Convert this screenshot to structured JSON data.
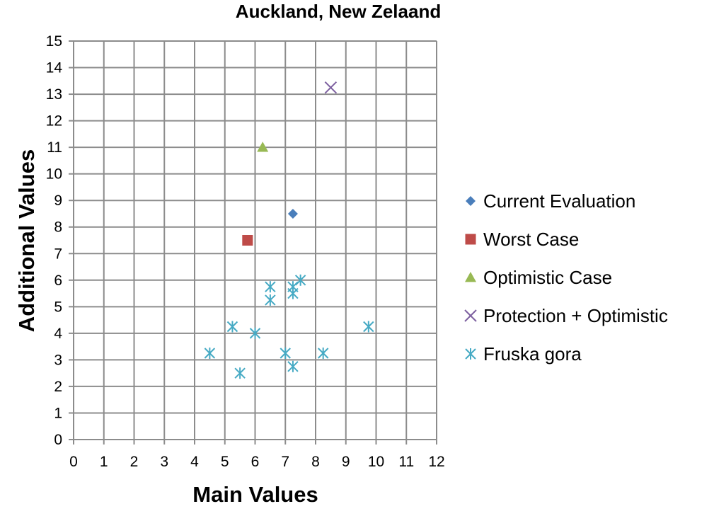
{
  "chart_data": {
    "type": "scatter",
    "title": "Auckland, New Zelaand",
    "xlabel": "Main Values",
    "ylabel": "Additional Values",
    "xlim": [
      0,
      12
    ],
    "ylim": [
      0,
      15
    ],
    "xticks": [
      0,
      1,
      2,
      3,
      4,
      5,
      6,
      7,
      8,
      9,
      10,
      11,
      12
    ],
    "yticks": [
      0,
      1,
      2,
      3,
      4,
      5,
      6,
      7,
      8,
      9,
      10,
      11,
      12,
      13,
      14,
      15
    ],
    "grid": true,
    "legend_position": "right",
    "series": [
      {
        "name": "Current Evaluation",
        "marker": "diamond",
        "color": "#4a7ebb",
        "points": [
          [
            7.25,
            8.5
          ]
        ]
      },
      {
        "name": "Worst Case",
        "marker": "square",
        "color": "#be4b48",
        "points": [
          [
            5.75,
            7.5
          ]
        ]
      },
      {
        "name": "Optimistic Case",
        "marker": "triangle",
        "color": "#98b954",
        "points": [
          [
            6.25,
            11.0
          ]
        ]
      },
      {
        "name": "Protection + Optimistic",
        "marker": "x",
        "color": "#7d60a0",
        "points": [
          [
            8.5,
            13.25
          ]
        ]
      },
      {
        "name": "Fruska gora",
        "marker": "asterisk",
        "color": "#46aac4",
        "points": [
          [
            4.5,
            3.25
          ],
          [
            5.25,
            4.25
          ],
          [
            5.5,
            2.5
          ],
          [
            6.0,
            4.0
          ],
          [
            6.5,
            5.25
          ],
          [
            6.5,
            5.75
          ],
          [
            7.0,
            3.25
          ],
          [
            7.25,
            2.75
          ],
          [
            7.25,
            5.5
          ],
          [
            7.25,
            5.75
          ],
          [
            7.5,
            6.0
          ],
          [
            8.25,
            3.25
          ],
          [
            9.75,
            4.25
          ]
        ]
      }
    ]
  }
}
